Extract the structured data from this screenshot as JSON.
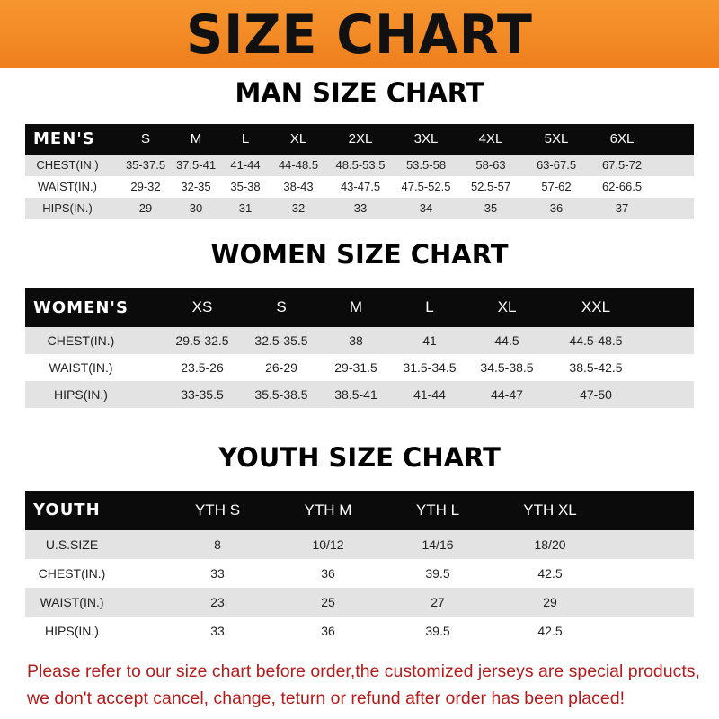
{
  "banner": {
    "title": "SIZE CHART",
    "color": "#f08a24"
  },
  "men": {
    "title": "MAN SIZE CHART",
    "header_label": "MEN'S",
    "sizes": [
      "S",
      "M",
      "L",
      "XL",
      "2XL",
      "3XL",
      "4XL",
      "5XL",
      "6XL"
    ],
    "rows": [
      {
        "label": "CHEST(IN.)",
        "values": [
          "35-37.5",
          "37.5-41",
          "41-44",
          "44-48.5",
          "48.5-53.5",
          "53.5-58",
          "58-63",
          "63-67.5",
          "67.5-72"
        ]
      },
      {
        "label": "WAIST(IN.)",
        "values": [
          "29-32",
          "32-35",
          "35-38",
          "38-43",
          "43-47.5",
          "47.5-52.5",
          "52.5-57",
          "57-62",
          "62-66.5"
        ]
      },
      {
        "label": "HIPS(IN.)",
        "values": [
          "29",
          "30",
          "31",
          "32",
          "33",
          "34",
          "35",
          "36",
          "37"
        ]
      }
    ]
  },
  "women": {
    "title": "WOMEN SIZE CHART",
    "header_label": "WOMEN'S",
    "sizes": [
      "XS",
      "S",
      "M",
      "L",
      "XL",
      "XXL"
    ],
    "rows": [
      {
        "label": "CHEST(IN.)",
        "values": [
          "29.5-32.5",
          "32.5-35.5",
          "38",
          "41",
          "44.5",
          "44.5-48.5"
        ]
      },
      {
        "label": "WAIST(IN.)",
        "values": [
          "23.5-26",
          "26-29",
          "29-31.5",
          "31.5-34.5",
          "34.5-38.5",
          "38.5-42.5"
        ]
      },
      {
        "label": "HIPS(IN.)",
        "values": [
          "33-35.5",
          "35.5-38.5",
          "38.5-41",
          "41-44",
          "44-47",
          "47-50"
        ]
      }
    ]
  },
  "youth": {
    "title": "YOUTH SIZE CHART",
    "header_label": "YOUTH",
    "sizes": [
      "YTH S",
      "YTH M",
      "YTH L",
      "YTH XL"
    ],
    "rows": [
      {
        "label": "U.S.SIZE",
        "values": [
          "8",
          "10/12",
          "14/16",
          "18/20"
        ]
      },
      {
        "label": "CHEST(IN.)",
        "values": [
          "33",
          "36",
          "39.5",
          "42.5"
        ]
      },
      {
        "label": "WAIST(IN.)",
        "values": [
          "23",
          "25",
          "27",
          "29"
        ]
      },
      {
        "label": "HIPS(IN.)",
        "values": [
          "33",
          "36",
          "39.5",
          "42.5"
        ]
      }
    ]
  },
  "note": {
    "line1": "Please refer to our size chart before order,the customized jerseys are special products,",
    "line2": "we don't accept cancel, change, teturn or refund after order has been placed!",
    "color": "#b41c1c"
  }
}
